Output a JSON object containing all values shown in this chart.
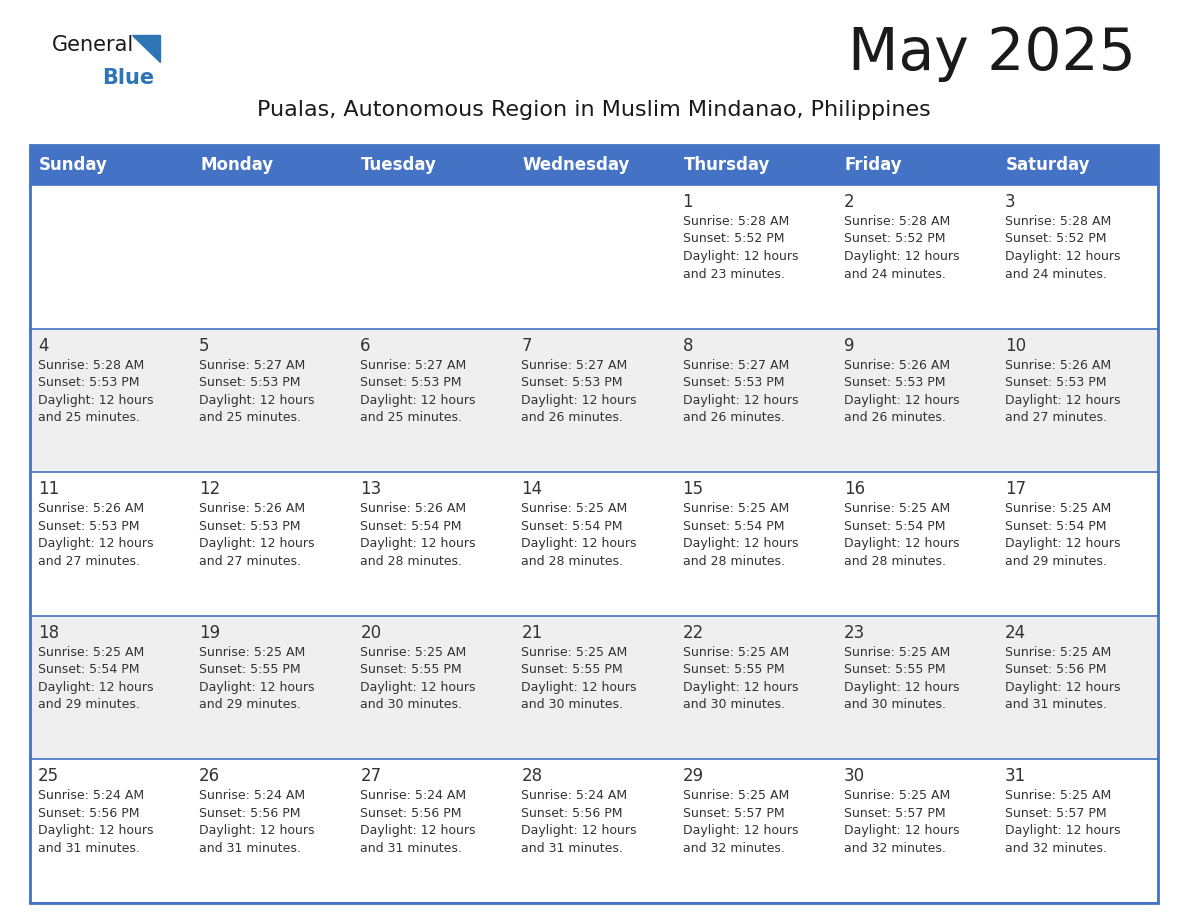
{
  "title": "May 2025",
  "subtitle": "Pualas, Autonomous Region in Muslim Mindanao, Philippines",
  "days_of_week": [
    "Sunday",
    "Monday",
    "Tuesday",
    "Wednesday",
    "Thursday",
    "Friday",
    "Saturday"
  ],
  "header_bg": "#4472C4",
  "header_text": "#FFFFFF",
  "cell_bg_white": "#FFFFFF",
  "cell_bg_gray": "#EFEFEF",
  "cell_text": "#333333",
  "day_num_color": "#333333",
  "border_color": "#4472C4",
  "title_color": "#1a1a1a",
  "subtitle_color": "#1a1a1a",
  "logo_general_color": "#1a1a1a",
  "logo_blue_color": "#2E75B6",
  "calendar": [
    {
      "day": 1,
      "col": 4,
      "row": 0,
      "sunrise": "5:28 AM",
      "sunset": "5:52 PM",
      "daylight": "12 hours and 23 minutes."
    },
    {
      "day": 2,
      "col": 5,
      "row": 0,
      "sunrise": "5:28 AM",
      "sunset": "5:52 PM",
      "daylight": "12 hours and 24 minutes."
    },
    {
      "day": 3,
      "col": 6,
      "row": 0,
      "sunrise": "5:28 AM",
      "sunset": "5:52 PM",
      "daylight": "12 hours and 24 minutes."
    },
    {
      "day": 4,
      "col": 0,
      "row": 1,
      "sunrise": "5:28 AM",
      "sunset": "5:53 PM",
      "daylight": "12 hours and 25 minutes."
    },
    {
      "day": 5,
      "col": 1,
      "row": 1,
      "sunrise": "5:27 AM",
      "sunset": "5:53 PM",
      "daylight": "12 hours and 25 minutes."
    },
    {
      "day": 6,
      "col": 2,
      "row": 1,
      "sunrise": "5:27 AM",
      "sunset": "5:53 PM",
      "daylight": "12 hours and 25 minutes."
    },
    {
      "day": 7,
      "col": 3,
      "row": 1,
      "sunrise": "5:27 AM",
      "sunset": "5:53 PM",
      "daylight": "12 hours and 26 minutes."
    },
    {
      "day": 8,
      "col": 4,
      "row": 1,
      "sunrise": "5:27 AM",
      "sunset": "5:53 PM",
      "daylight": "12 hours and 26 minutes."
    },
    {
      "day": 9,
      "col": 5,
      "row": 1,
      "sunrise": "5:26 AM",
      "sunset": "5:53 PM",
      "daylight": "12 hours and 26 minutes."
    },
    {
      "day": 10,
      "col": 6,
      "row": 1,
      "sunrise": "5:26 AM",
      "sunset": "5:53 PM",
      "daylight": "12 hours and 27 minutes."
    },
    {
      "day": 11,
      "col": 0,
      "row": 2,
      "sunrise": "5:26 AM",
      "sunset": "5:53 PM",
      "daylight": "12 hours and 27 minutes."
    },
    {
      "day": 12,
      "col": 1,
      "row": 2,
      "sunrise": "5:26 AM",
      "sunset": "5:53 PM",
      "daylight": "12 hours and 27 minutes."
    },
    {
      "day": 13,
      "col": 2,
      "row": 2,
      "sunrise": "5:26 AM",
      "sunset": "5:54 PM",
      "daylight": "12 hours and 28 minutes."
    },
    {
      "day": 14,
      "col": 3,
      "row": 2,
      "sunrise": "5:25 AM",
      "sunset": "5:54 PM",
      "daylight": "12 hours and 28 minutes."
    },
    {
      "day": 15,
      "col": 4,
      "row": 2,
      "sunrise": "5:25 AM",
      "sunset": "5:54 PM",
      "daylight": "12 hours and 28 minutes."
    },
    {
      "day": 16,
      "col": 5,
      "row": 2,
      "sunrise": "5:25 AM",
      "sunset": "5:54 PM",
      "daylight": "12 hours and 28 minutes."
    },
    {
      "day": 17,
      "col": 6,
      "row": 2,
      "sunrise": "5:25 AM",
      "sunset": "5:54 PM",
      "daylight": "12 hours and 29 minutes."
    },
    {
      "day": 18,
      "col": 0,
      "row": 3,
      "sunrise": "5:25 AM",
      "sunset": "5:54 PM",
      "daylight": "12 hours and 29 minutes."
    },
    {
      "day": 19,
      "col": 1,
      "row": 3,
      "sunrise": "5:25 AM",
      "sunset": "5:55 PM",
      "daylight": "12 hours and 29 minutes."
    },
    {
      "day": 20,
      "col": 2,
      "row": 3,
      "sunrise": "5:25 AM",
      "sunset": "5:55 PM",
      "daylight": "12 hours and 30 minutes."
    },
    {
      "day": 21,
      "col": 3,
      "row": 3,
      "sunrise": "5:25 AM",
      "sunset": "5:55 PM",
      "daylight": "12 hours and 30 minutes."
    },
    {
      "day": 22,
      "col": 4,
      "row": 3,
      "sunrise": "5:25 AM",
      "sunset": "5:55 PM",
      "daylight": "12 hours and 30 minutes."
    },
    {
      "day": 23,
      "col": 5,
      "row": 3,
      "sunrise": "5:25 AM",
      "sunset": "5:55 PM",
      "daylight": "12 hours and 30 minutes."
    },
    {
      "day": 24,
      "col": 6,
      "row": 3,
      "sunrise": "5:25 AM",
      "sunset": "5:56 PM",
      "daylight": "12 hours and 31 minutes."
    },
    {
      "day": 25,
      "col": 0,
      "row": 4,
      "sunrise": "5:24 AM",
      "sunset": "5:56 PM",
      "daylight": "12 hours and 31 minutes."
    },
    {
      "day": 26,
      "col": 1,
      "row": 4,
      "sunrise": "5:24 AM",
      "sunset": "5:56 PM",
      "daylight": "12 hours and 31 minutes."
    },
    {
      "day": 27,
      "col": 2,
      "row": 4,
      "sunrise": "5:24 AM",
      "sunset": "5:56 PM",
      "daylight": "12 hours and 31 minutes."
    },
    {
      "day": 28,
      "col": 3,
      "row": 4,
      "sunrise": "5:24 AM",
      "sunset": "5:56 PM",
      "daylight": "12 hours and 31 minutes."
    },
    {
      "day": 29,
      "col": 4,
      "row": 4,
      "sunrise": "5:25 AM",
      "sunset": "5:57 PM",
      "daylight": "12 hours and 32 minutes."
    },
    {
      "day": 30,
      "col": 5,
      "row": 4,
      "sunrise": "5:25 AM",
      "sunset": "5:57 PM",
      "daylight": "12 hours and 32 minutes."
    },
    {
      "day": 31,
      "col": 6,
      "row": 4,
      "sunrise": "5:25 AM",
      "sunset": "5:57 PM",
      "daylight": "12 hours and 32 minutes."
    }
  ]
}
